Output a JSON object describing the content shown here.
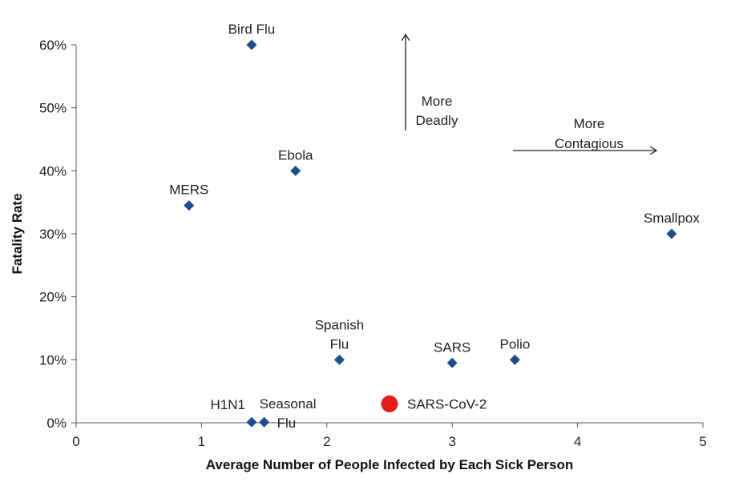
{
  "chart_data": {
    "type": "scatter",
    "title": "",
    "xlabel": "Average Number of People Infected by Each Sick Person",
    "ylabel": "Fatality Rate",
    "xlim": [
      0,
      5
    ],
    "ylim": [
      0,
      60
    ],
    "x_ticks": [
      0,
      1,
      2,
      3,
      4,
      5
    ],
    "y_ticks": [
      0,
      10,
      20,
      30,
      40,
      50,
      60
    ],
    "y_tick_suffix": "%",
    "grid": false,
    "legend": "none",
    "colors": {
      "marker": "#1f4e8c",
      "highlight": "#e31b1b",
      "axis": "#555555",
      "text": "#222222"
    },
    "points": [
      {
        "name": "Bird Flu",
        "label_lines": [
          "Bird Flu"
        ],
        "x": 1.4,
        "y": 60,
        "marker": "diamond",
        "label_position": "above"
      },
      {
        "name": "Ebola",
        "label_lines": [
          "Ebola"
        ],
        "x": 1.75,
        "y": 40,
        "marker": "diamond",
        "label_position": "above"
      },
      {
        "name": "MERS",
        "label_lines": [
          "MERS"
        ],
        "x": 0.9,
        "y": 34.5,
        "marker": "diamond",
        "label_position": "above"
      },
      {
        "name": "Smallpox",
        "label_lines": [
          "Smallpox"
        ],
        "x": 4.75,
        "y": 30,
        "marker": "diamond",
        "label_position": "above"
      },
      {
        "name": "Spanish Flu",
        "label_lines": [
          "Spanish",
          "Flu"
        ],
        "x": 2.1,
        "y": 10,
        "marker": "diamond",
        "label_position": "above"
      },
      {
        "name": "SARS",
        "label_lines": [
          "SARS"
        ],
        "x": 3.0,
        "y": 9.5,
        "marker": "diamond",
        "label_position": "above"
      },
      {
        "name": "Polio",
        "label_lines": [
          "Polio"
        ],
        "x": 3.5,
        "y": 10,
        "marker": "diamond",
        "label_position": "above"
      },
      {
        "name": "H1N1",
        "label_lines": [
          "H1N1"
        ],
        "x": 1.4,
        "y": 0.1,
        "marker": "diamond",
        "label_position": "upper-left"
      },
      {
        "name": "Seasonal Flu",
        "label_lines": [
          "Seasonal",
          "Flu"
        ],
        "x": 1.5,
        "y": 0.1,
        "marker": "diamond",
        "label_position": "upper-right"
      },
      {
        "name": "SARS-CoV-2",
        "label_lines": [
          "SARS-CoV-2"
        ],
        "x": 2.5,
        "y": 3,
        "marker": "circle",
        "highlight": true,
        "label_position": "right"
      }
    ],
    "annotations": [
      {
        "name": "more-deadly",
        "lines": [
          "More",
          "Deadly"
        ],
        "arrow": "up"
      },
      {
        "name": "more-contagious",
        "lines": [
          "More",
          "Contagious"
        ],
        "arrow": "right"
      }
    ]
  }
}
